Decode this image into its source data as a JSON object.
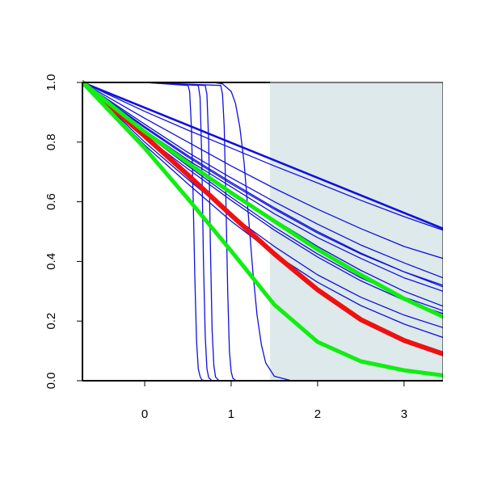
{
  "chart_data": {
    "type": "line",
    "title": "",
    "xlabel": "",
    "ylabel": "",
    "xlim": [
      -0.72,
      3.45
    ],
    "ylim": [
      0,
      1
    ],
    "grid": false,
    "legend": "none",
    "x_ticks": [
      0,
      1,
      2,
      3
    ],
    "x_tick_labels": [
      "0",
      "1",
      "2",
      "3"
    ],
    "y_ticks": [
      0,
      0.2,
      0.4,
      0.6,
      0.8,
      1
    ],
    "y_tick_labels": [
      "0.0",
      "0.2",
      "0.4",
      "0.6",
      "0.8",
      "1.0"
    ],
    "shaded_region": {
      "x_start": 1.45,
      "x_end": 3.45,
      "color": "#dde9ea"
    },
    "colors": {
      "blue": "#1010dd",
      "red": "#ee1111",
      "green": "#11ee11",
      "axis": "#000000"
    },
    "series": [
      {
        "color": "blue",
        "width": 1.3,
        "x": [
          -0.72,
          0.0,
          0.5,
          0.52,
          0.54,
          0.56,
          0.58,
          0.6,
          0.62,
          0.64,
          0.66,
          0.7,
          3.45
        ],
        "y": [
          1,
          1,
          0.99,
          0.97,
          0.85,
          0.62,
          0.35,
          0.13,
          0.04,
          0.015,
          0.003,
          0.0,
          0.0
        ]
      },
      {
        "color": "blue",
        "width": 1.3,
        "x": [
          -0.72,
          0.0,
          0.62,
          0.64,
          0.66,
          0.68,
          0.7,
          0.72,
          0.74,
          0.78,
          3.45
        ],
        "y": [
          1,
          1,
          0.99,
          0.95,
          0.75,
          0.4,
          0.15,
          0.04,
          0.01,
          0.0,
          0.0
        ]
      },
      {
        "color": "blue",
        "width": 1.3,
        "x": [
          -0.72,
          0.0,
          0.7,
          0.72,
          0.74,
          0.76,
          0.78,
          0.8,
          0.82,
          0.86,
          3.45
        ],
        "y": [
          1,
          1,
          0.99,
          0.96,
          0.8,
          0.45,
          0.17,
          0.05,
          0.012,
          0.0,
          0.0
        ]
      },
      {
        "color": "blue",
        "width": 1.3,
        "x": [
          -0.72,
          0.0,
          0.88,
          0.9,
          0.92,
          0.94,
          0.96,
          0.98,
          1.0,
          1.02,
          1.06,
          3.45
        ],
        "y": [
          1,
          1,
          0.99,
          0.96,
          0.85,
          0.6,
          0.3,
          0.1,
          0.03,
          0.008,
          0.0,
          0.0
        ]
      },
      {
        "color": "blue",
        "width": 1.3,
        "x": [
          -0.72,
          0.0,
          0.8,
          0.9,
          1.0,
          1.05,
          1.1,
          1.15,
          1.2,
          1.25,
          1.3,
          1.35,
          1.4,
          1.5,
          1.7,
          3.45
        ],
        "y": [
          1,
          1,
          1,
          0.995,
          0.97,
          0.93,
          0.85,
          0.73,
          0.55,
          0.37,
          0.22,
          0.12,
          0.06,
          0.015,
          0.0,
          0.0
        ]
      },
      {
        "color": "blue",
        "width": 2.6,
        "x": [
          -0.72,
          3.45
        ],
        "y": [
          1,
          0.51
        ]
      },
      {
        "color": "blue",
        "width": 1.3,
        "x": [
          -0.72,
          0.0,
          0.5,
          1.0,
          1.5,
          2.0,
          2.5,
          3.0,
          3.45
        ],
        "y": [
          1,
          0.903,
          0.84,
          0.78,
          0.72,
          0.663,
          0.605,
          0.55,
          0.505
        ]
      },
      {
        "color": "blue",
        "width": 1.3,
        "x": [
          -0.72,
          0.0,
          0.5,
          1.0,
          1.5,
          2.0,
          2.5,
          3.0,
          3.45
        ],
        "y": [
          1,
          0.88,
          0.8,
          0.72,
          0.645,
          0.575,
          0.51,
          0.45,
          0.41
        ]
      },
      {
        "color": "blue",
        "width": 1.3,
        "x": [
          -0.72,
          0.0,
          0.5,
          1.0,
          1.5,
          2.0,
          2.5,
          3.0,
          3.45
        ],
        "y": [
          1,
          0.86,
          0.765,
          0.68,
          0.6,
          0.525,
          0.455,
          0.395,
          0.345
        ]
      },
      {
        "color": "blue",
        "width": 1.3,
        "x": [
          -0.72,
          0.0,
          0.5,
          1.0,
          1.5,
          2.0,
          2.5,
          3.0,
          3.45
        ],
        "y": [
          1,
          0.848,
          0.75,
          0.66,
          0.575,
          0.495,
          0.425,
          0.365,
          0.32
        ]
      },
      {
        "color": "blue",
        "width": 1.3,
        "x": [
          -0.72,
          0.0,
          0.5,
          1.0,
          1.5,
          2.0,
          2.5,
          3.0,
          3.45
        ],
        "y": [
          1,
          0.852,
          0.755,
          0.665,
          0.58,
          0.5,
          0.428,
          0.365,
          0.315
        ]
      },
      {
        "color": "blue",
        "width": 1.3,
        "x": [
          -0.72,
          0.0,
          0.5,
          1.0,
          1.5,
          2.0,
          2.5,
          3.0,
          3.45
        ],
        "y": [
          1,
          0.84,
          0.74,
          0.65,
          0.56,
          0.48,
          0.41,
          0.345,
          0.3
        ]
      },
      {
        "color": "blue",
        "width": 1.3,
        "x": [
          -0.72,
          0.0,
          0.5,
          1.0,
          1.5,
          2.0,
          2.5,
          3.0,
          3.45
        ],
        "y": [
          1,
          0.84,
          0.735,
          0.635,
          0.54,
          0.45,
          0.37,
          0.3,
          0.25
        ]
      },
      {
        "color": "blue",
        "width": 1.3,
        "x": [
          -0.72,
          0.0,
          0.5,
          1.0,
          1.5,
          2.0,
          2.5,
          3.0,
          3.45
        ],
        "y": [
          1,
          0.82,
          0.71,
          0.605,
          0.505,
          0.415,
          0.335,
          0.27,
          0.225
        ]
      },
      {
        "color": "blue",
        "width": 1.3,
        "x": [
          -0.72,
          0.0,
          0.5,
          1.0,
          1.5,
          2.0,
          2.5,
          3.0,
          3.45
        ],
        "y": [
          1,
          0.83,
          0.72,
          0.615,
          0.515,
          0.425,
          0.345,
          0.28,
          0.235
        ]
      },
      {
        "color": "blue",
        "width": 1.3,
        "x": [
          -0.72,
          0.0,
          0.5,
          1.0,
          1.5,
          2.0,
          2.5,
          3.0,
          3.45
        ],
        "y": [
          1,
          0.8,
          0.675,
          0.555,
          0.45,
          0.355,
          0.28,
          0.22,
          0.178
        ]
      },
      {
        "color": "blue",
        "width": 1.3,
        "x": [
          -0.72,
          0.0,
          0.5,
          1.0,
          1.5,
          2.0,
          2.5,
          3.0,
          3.45
        ],
        "y": [
          1,
          0.79,
          0.66,
          0.535,
          0.425,
          0.33,
          0.252,
          0.19,
          0.145
        ]
      },
      {
        "color": "red",
        "width": 6,
        "x": [
          -0.72,
          0.0,
          0.5,
          1.0,
          1.5,
          2.0,
          2.5,
          3.0,
          3.45
        ],
        "y": [
          1,
          0.82,
          0.69,
          0.555,
          0.425,
          0.305,
          0.205,
          0.135,
          0.09
        ]
      },
      {
        "color": "green",
        "width": 5,
        "x": [
          -0.72,
          0.0,
          0.5,
          1.0,
          1.5,
          2.0,
          2.5,
          3.0,
          3.45
        ],
        "y": [
          1,
          0.835,
          0.73,
          0.63,
          0.535,
          0.44,
          0.355,
          0.275,
          0.215
        ]
      },
      {
        "color": "green",
        "width": 5,
        "x": [
          -0.72,
          0.0,
          0.5,
          1.0,
          1.5,
          2.0,
          2.5,
          3.0,
          3.45
        ],
        "y": [
          1,
          0.78,
          0.61,
          0.435,
          0.255,
          0.13,
          0.065,
          0.035,
          0.018
        ]
      }
    ]
  }
}
